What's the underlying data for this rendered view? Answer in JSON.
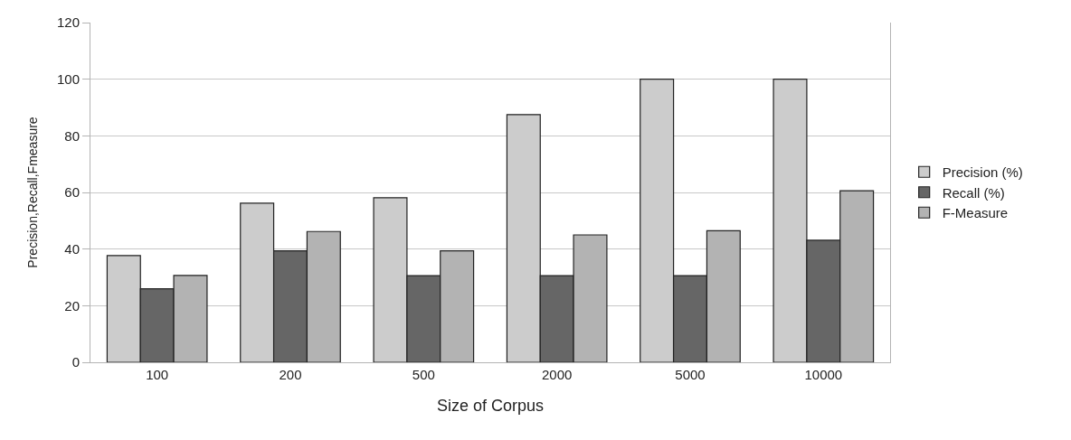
{
  "chart_data": {
    "type": "bar",
    "xlabel": "Size of Corpus",
    "ylabel": "Precision,Recall,Fmeasure",
    "categories": [
      "100",
      "200",
      "500",
      "2000",
      "5000",
      "10000"
    ],
    "series": [
      {
        "name": "Precision (%)",
        "color": "#cccccc",
        "values": [
          37.7,
          56.2,
          58.1,
          87.5,
          100,
          100
        ]
      },
      {
        "name": "Recall (%)",
        "color": "#666666",
        "values": [
          26,
          39.4,
          30.6,
          30.6,
          30.6,
          43.1
        ]
      },
      {
        "name": "F-Measure",
        "color": "#b3b3b3",
        "values": [
          30.7,
          46.2,
          39.4,
          45,
          46.5,
          60.6
        ]
      }
    ],
    "ylim": [
      0,
      120
    ],
    "yticks": [
      0,
      20,
      40,
      60,
      80,
      100,
      120
    ],
    "grid": "y",
    "legend": "right"
  }
}
